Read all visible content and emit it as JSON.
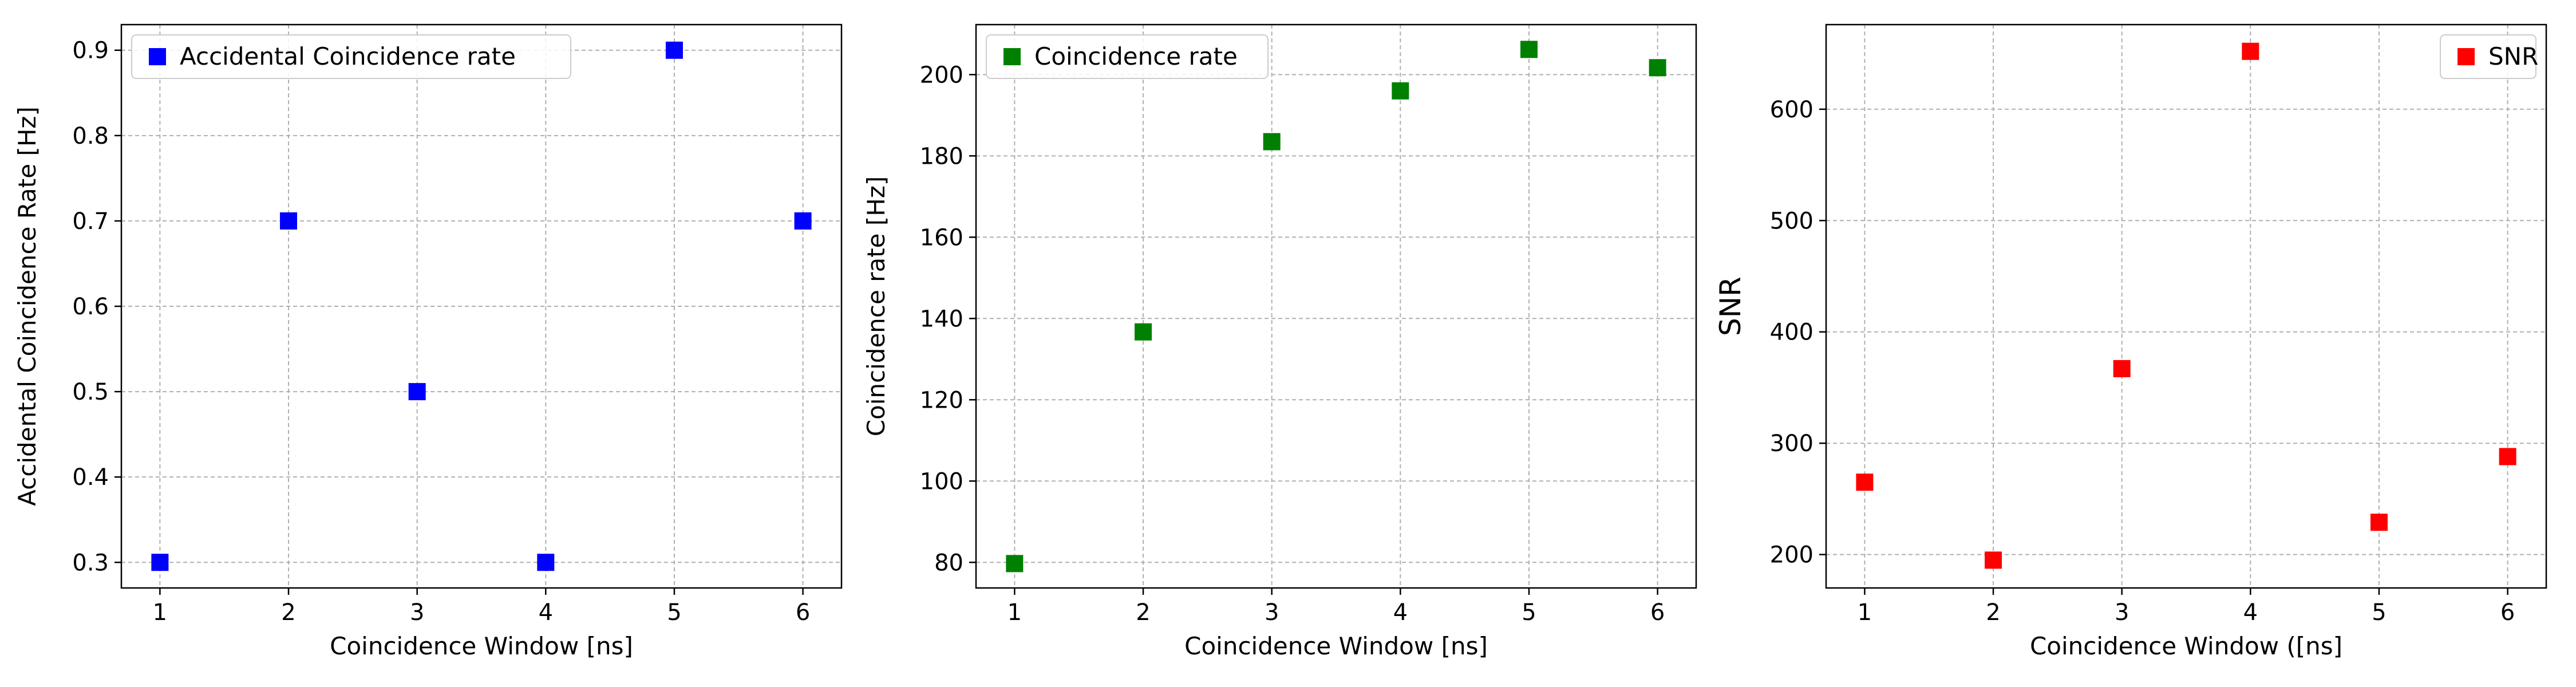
{
  "chart_data": [
    {
      "type": "scatter",
      "xlabel": "Coincidence Window [ns]",
      "ylabel": "Accidental Coincidence Rate [Hz]",
      "xlim": [
        0.7,
        6.3
      ],
      "ylim": [
        0.27,
        0.93
      ],
      "xticks": [
        1,
        2,
        3,
        4,
        5,
        6
      ],
      "yticks": [
        0.3,
        0.4,
        0.5,
        0.6,
        0.7,
        0.8,
        0.9
      ],
      "grid": true,
      "legend_position": "top-left",
      "series": [
        {
          "name": "Accidental Coincidence rate",
          "color": "#0000ff",
          "marker": "square",
          "x": [
            1,
            2,
            3,
            4,
            5,
            6
          ],
          "y": [
            0.3,
            0.7,
            0.5,
            0.3,
            0.9,
            0.7
          ]
        }
      ]
    },
    {
      "type": "scatter",
      "xlabel": "Coincidence Window [ns]",
      "ylabel": "Coincidence rate [Hz]",
      "xlim": [
        0.7,
        6.3
      ],
      "ylim": [
        73.7,
        212.3
      ],
      "xticks": [
        1,
        2,
        3,
        4,
        5,
        6
      ],
      "yticks": [
        80,
        100,
        120,
        140,
        160,
        180,
        200
      ],
      "grid": true,
      "legend_position": "top-left",
      "series": [
        {
          "name": "Coincidence rate",
          "color": "#008000",
          "marker": "square",
          "x": [
            1,
            2,
            3,
            4,
            5,
            6
          ],
          "y": [
            79.7,
            136.7,
            183.5,
            196,
            206.2,
            201.7
          ]
        }
      ]
    },
    {
      "type": "scatter",
      "xlabel": "Coincidence Window ([ns]",
      "ylabel": "SNR",
      "xlim": [
        0.7,
        6.3
      ],
      "ylim": [
        170,
        676
      ],
      "xticks": [
        1,
        2,
        3,
        4,
        5,
        6
      ],
      "yticks": [
        200,
        300,
        400,
        500,
        600
      ],
      "grid": true,
      "legend_position": "top-right",
      "series": [
        {
          "name": "SNR",
          "color": "#ff0000",
          "marker": "square",
          "x": [
            1,
            2,
            3,
            4,
            5,
            6
          ],
          "y": [
            265,
            195,
            367,
            652,
            229,
            288
          ]
        }
      ]
    }
  ]
}
